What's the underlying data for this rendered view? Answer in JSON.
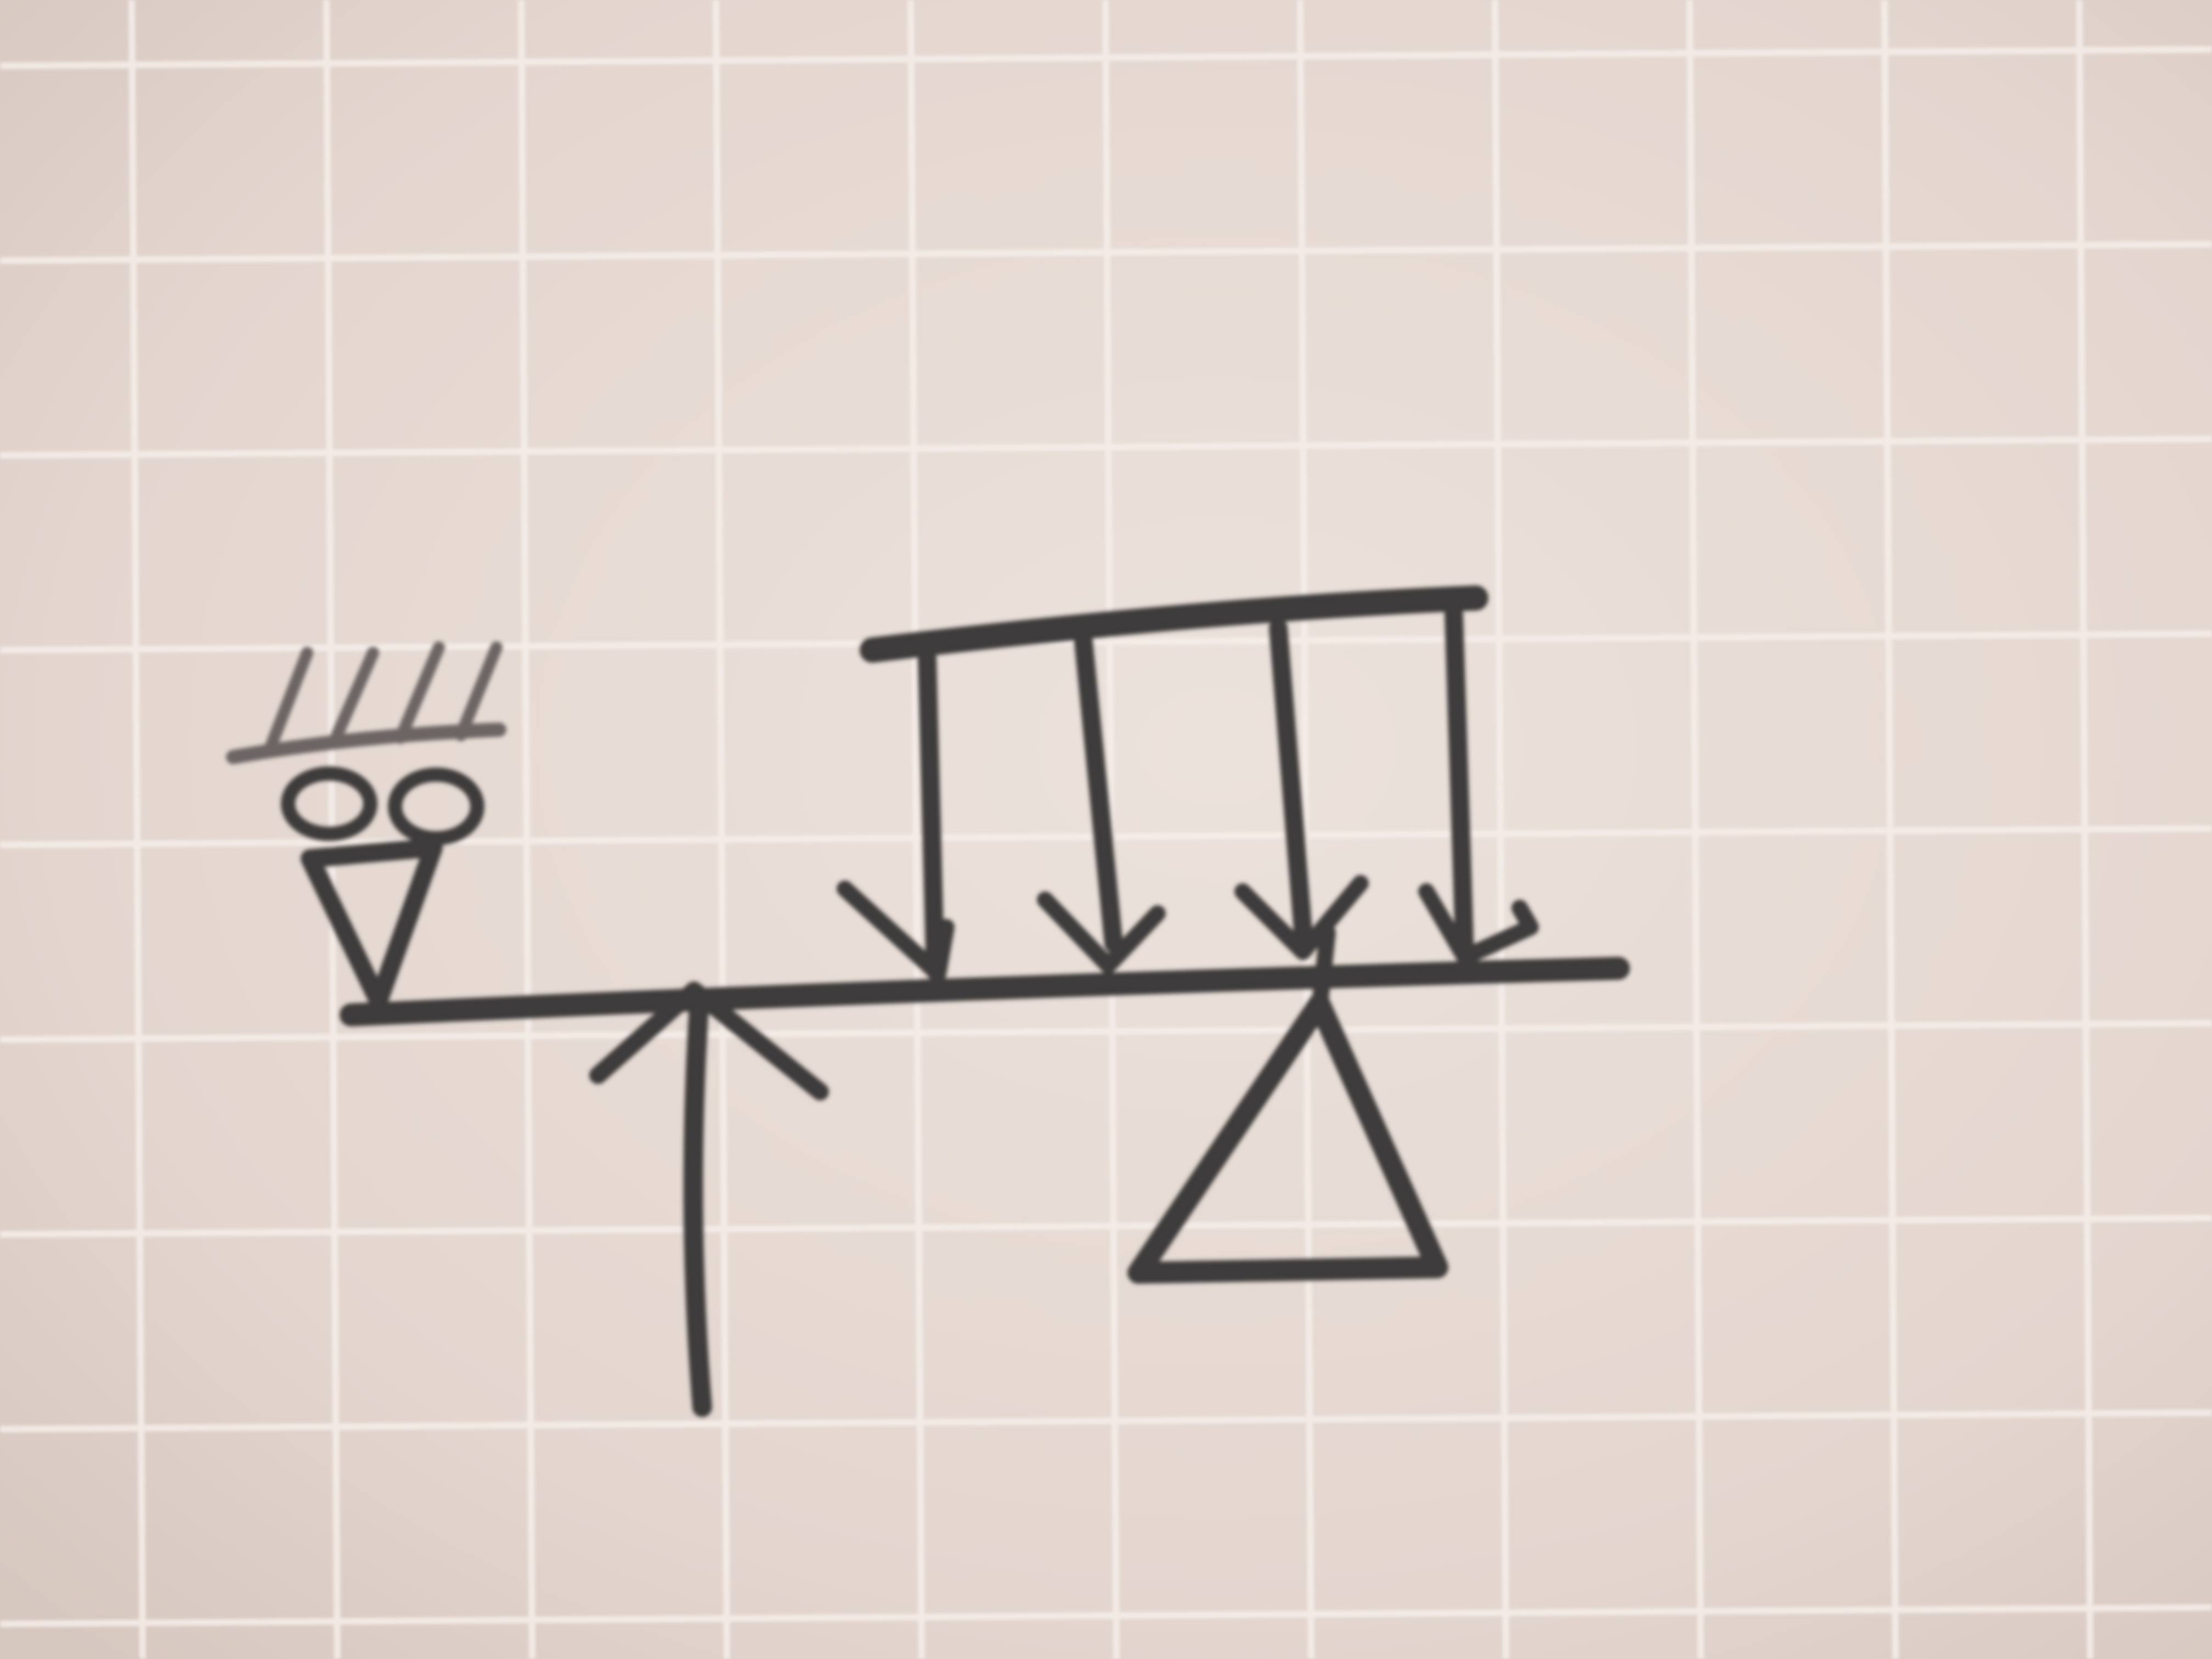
{
  "diagram": {
    "subject": "beam",
    "supports": {
      "left": "pinned-support-with-rollers",
      "right": "fixed-pin-support"
    },
    "loads": {
      "distributed": {
        "type": "uniform",
        "arrow_count": 4
      },
      "point": {
        "direction": "upward",
        "count": 1
      }
    }
  },
  "colors": {
    "paper": "#e8dcd6",
    "grid": "#f6eeea",
    "pencil": "#3e3b3a",
    "pencil_light": "#6c6563"
  }
}
